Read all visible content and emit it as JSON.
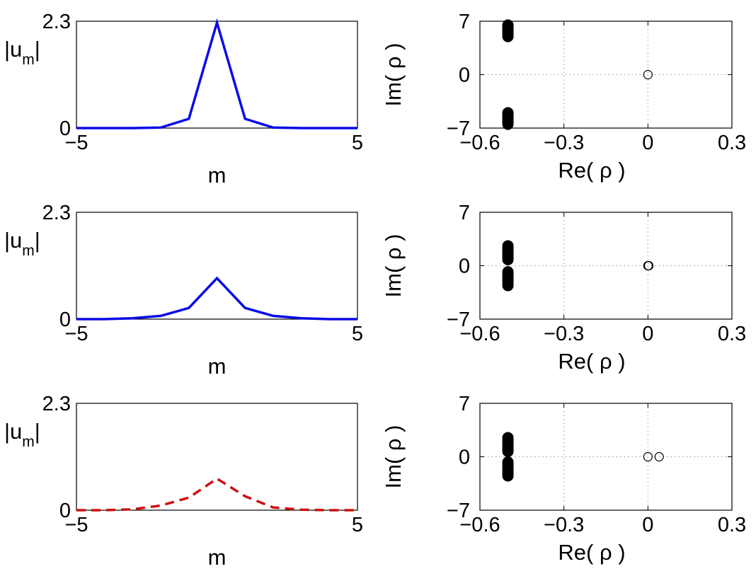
{
  "figure": "Six-panel figure: |u_m| profiles (left) and stability spectra (right)",
  "colors": {
    "blue": "#0b0be8",
    "red": "#cc1111",
    "axis": "#000000",
    "grid": "#9a9a9a"
  },
  "chart_data": [
    {
      "type": "line",
      "panel": "row1-left",
      "style": "solid",
      "color": "#0b0be8",
      "xlabel": "m",
      "ylabel": "|u_m|",
      "ylabel_main": "|u",
      "ylabel_sub": "m",
      "ylabel_end": "|",
      "xlim": [
        -5,
        5
      ],
      "ylim": [
        0,
        2.3
      ],
      "xticks": [
        "−5",
        "5"
      ],
      "yticks": [
        "0",
        "2.3"
      ],
      "x": [
        -5,
        -4,
        -3,
        -2,
        -1,
        0,
        1,
        2,
        3,
        4,
        5
      ],
      "y": [
        0,
        0,
        0,
        0.01,
        0.2,
        2.27,
        0.2,
        0.01,
        0,
        0,
        0
      ]
    },
    {
      "type": "scatter",
      "panel": "row1-right",
      "xlabel": "Re( ρ )",
      "ylabel": "Im( ρ )",
      "xlim": [
        -0.6,
        0.3
      ],
      "ylim": [
        -7,
        7
      ],
      "xticks": [
        "−0.6",
        "−0.3",
        "0",
        "0.3"
      ],
      "yticks": [
        "−7",
        "0",
        "7"
      ],
      "grid": true,
      "series": [
        {
          "name": "filled",
          "marker": "filled",
          "x": -0.5,
          "y": [
            5.0,
            5.25,
            5.5,
            5.75,
            6.0,
            6.25,
            6.5,
            -5.0,
            -5.25,
            -5.5,
            -5.75,
            -6.0,
            -6.25,
            -6.5
          ]
        },
        {
          "name": "open",
          "marker": "open",
          "x": [
            0
          ],
          "y": [
            0
          ]
        }
      ]
    },
    {
      "type": "line",
      "panel": "row2-left",
      "style": "solid",
      "color": "#0b0be8",
      "xlabel": "m",
      "ylabel": "|u_m|",
      "ylabel_main": "|u",
      "ylabel_sub": "m",
      "ylabel_end": "|",
      "xlim": [
        -5,
        5
      ],
      "ylim": [
        0,
        2.3
      ],
      "xticks": [
        "−5",
        "5"
      ],
      "yticks": [
        "0",
        "2.3"
      ],
      "x": [
        -5,
        -4,
        -3,
        -2,
        -1,
        0,
        1,
        2,
        3,
        4,
        5
      ],
      "y": [
        0,
        0,
        0.02,
        0.07,
        0.24,
        0.88,
        0.24,
        0.07,
        0.02,
        0,
        0
      ]
    },
    {
      "type": "scatter",
      "panel": "row2-right",
      "xlabel": "Re( ρ )",
      "ylabel": "Im( ρ )",
      "xlim": [
        -0.6,
        0.3
      ],
      "ylim": [
        -7,
        7
      ],
      "xticks": [
        "−0.6",
        "−0.3",
        "0",
        "0.3"
      ],
      "yticks": [
        "−7",
        "0",
        "7"
      ],
      "grid": true,
      "series": [
        {
          "name": "filled",
          "marker": "filled",
          "x": -0.5,
          "y": [
            0.8,
            1.1,
            1.4,
            1.7,
            2.0,
            2.3,
            2.6,
            -0.8,
            -1.1,
            -1.4,
            -1.7,
            -2.0,
            -2.3,
            -2.6
          ]
        },
        {
          "name": "open",
          "marker": "open",
          "x": [
            0,
            0.003
          ],
          "y": [
            0,
            0
          ]
        }
      ]
    },
    {
      "type": "line",
      "panel": "row3-left",
      "style": "dashed",
      "color": "#cc1111",
      "xlabel": "m",
      "ylabel": "|u_m|",
      "ylabel_main": "|u",
      "ylabel_sub": "m",
      "ylabel_end": "|",
      "xlim": [
        -5,
        5
      ],
      "ylim": [
        0,
        2.3
      ],
      "xticks": [
        "−5",
        "5"
      ],
      "yticks": [
        "0",
        "2.3"
      ],
      "x": [
        -5,
        -4,
        -3,
        -2,
        -1,
        0,
        1,
        2,
        3,
        4,
        5
      ],
      "y": [
        0,
        0,
        0.02,
        0.1,
        0.27,
        0.68,
        0.3,
        0.06,
        0.01,
        0,
        0
      ]
    },
    {
      "type": "scatter",
      "panel": "row3-right",
      "xlabel": "Re( ρ )",
      "ylabel": "Im( ρ )",
      "xlim": [
        -0.6,
        0.3
      ],
      "ylim": [
        -7,
        7
      ],
      "xticks": [
        "−0.6",
        "−0.3",
        "0",
        "0.3"
      ],
      "yticks": [
        "−7",
        "0",
        "7"
      ],
      "grid": true,
      "series": [
        {
          "name": "filled",
          "marker": "filled",
          "x": -0.5,
          "y": [
            0.7,
            1.0,
            1.3,
            1.6,
            1.9,
            2.2,
            2.5,
            -0.7,
            -1.0,
            -1.3,
            -1.6,
            -1.9,
            -2.2,
            -2.5
          ]
        },
        {
          "name": "open",
          "marker": "open",
          "x": [
            0,
            0.04
          ],
          "y": [
            0,
            0
          ]
        }
      ]
    }
  ]
}
